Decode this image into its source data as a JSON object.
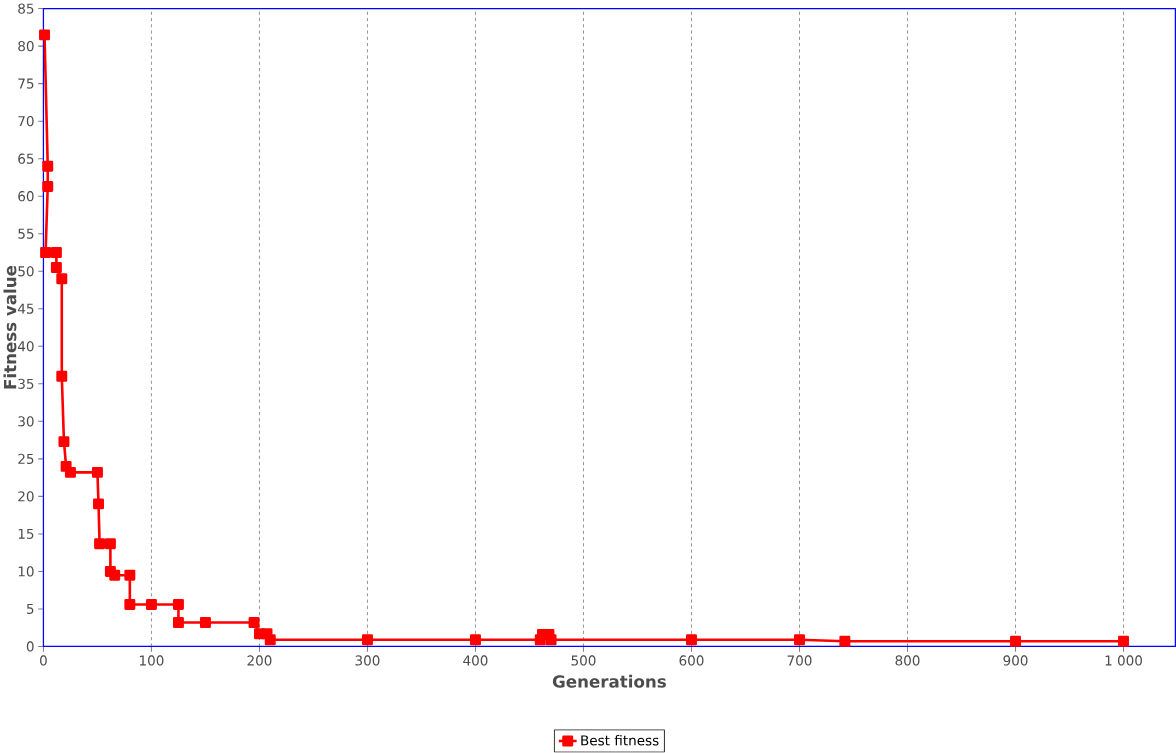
{
  "chart_data": {
    "type": "line",
    "xlabel": "Generations",
    "ylabel": "Fitness value",
    "series": [
      {
        "name": "Best fitness",
        "color": "#ff0000",
        "x": [
          1,
          4,
          4,
          2,
          12,
          12,
          17,
          17,
          19,
          21,
          25,
          50,
          51,
          52,
          62,
          62,
          66,
          80,
          80,
          100,
          125,
          125,
          150,
          195,
          200,
          207,
          210,
          300,
          400,
          460,
          462,
          468,
          470,
          600,
          700,
          742,
          900,
          1000
        ],
        "values": [
          81.5,
          64,
          61.3,
          52.5,
          52.5,
          50.5,
          49,
          36,
          27.3,
          24,
          23.2,
          23.2,
          19,
          13.7,
          13.7,
          10,
          9.5,
          9.5,
          5.6,
          5.6,
          5.6,
          3.2,
          3.2,
          3.2,
          1.7,
          1.7,
          0.9,
          0.9,
          0.9,
          0.9,
          1.6,
          1.6,
          0.9,
          0.9,
          0.9,
          0.7,
          0.7,
          0.7
        ]
      }
    ],
    "xlim": [
      0,
      1048
    ],
    "ylim": [
      0,
      85
    ],
    "xticks": [
      0,
      100,
      200,
      300,
      400,
      500,
      600,
      700,
      800,
      900,
      {
        "value": 1000,
        "label": "1 000"
      }
    ],
    "yticks": [
      0,
      5,
      10,
      15,
      20,
      25,
      30,
      35,
      40,
      45,
      50,
      55,
      60,
      65,
      70,
      75,
      80,
      85
    ],
    "grid": "x",
    "legend": "bottom",
    "marker": "square",
    "line_style": "solid"
  }
}
